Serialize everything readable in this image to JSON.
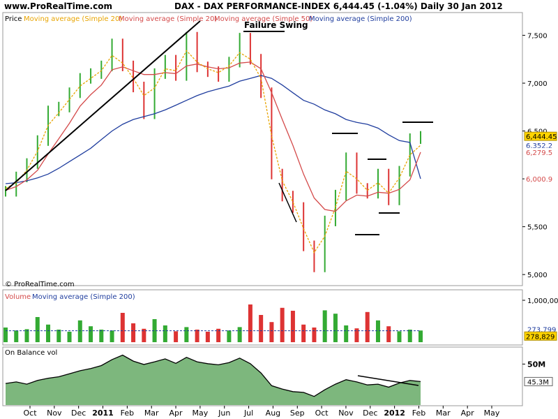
{
  "header": {
    "site": "www.ProRealTime.com",
    "title_line": "DAX - DAX PERFORMANCE-INDEX   6,444.45 (-1.04%)   Daily  30 Jan 2012"
  },
  "colors": {
    "price_up": "#33aa33",
    "price_down": "#dd3333",
    "ma20": "#e8a400",
    "ma50": "#d44a4a",
    "ma200": "#1f3d9e",
    "obv_fill": "#7db77d",
    "last_price_bg": "#ffd400"
  },
  "chart_data": [
    {
      "type": "line",
      "panel": "price",
      "legend": [
        "Price",
        "Moving average (Simple 20)",
        "Moving average (Simple 20)",
        "Moving average (Simple 50)",
        "Moving average (Simple 200)"
      ],
      "watermark": "© ProRealTime.com",
      "annotation": "Failure Swing",
      "ylim": [
        4950,
        7650
      ],
      "y_ticks": [
        "7,500",
        "7,000",
        "6,500",
        "6,000",
        "5,500",
        "5,000"
      ],
      "y_tick_values": [
        7500,
        7000,
        6500,
        6000,
        5500,
        5000
      ],
      "last_values": [
        {
          "label": "6,444.45",
          "value": 6444.45,
          "kind": "price"
        },
        {
          "label": "6,352.2",
          "value": 6352.2,
          "kind": "ma20"
        },
        {
          "label": "6,279.5",
          "value": 6279.5,
          "kind": "ma50"
        },
        {
          "label": "6,000.9",
          "value": 6000.9,
          "kind": "ma200"
        }
      ],
      "x_dates": [
        "2010-09-20",
        "2010-10-04",
        "2010-10-18",
        "2010-11-01",
        "2010-11-15",
        "2010-11-29",
        "2010-12-13",
        "2010-12-27",
        "2011-01-10",
        "2011-01-24",
        "2011-02-07",
        "2011-02-21",
        "2011-03-07",
        "2011-03-14",
        "2011-03-21",
        "2011-04-04",
        "2011-04-18",
        "2011-05-02",
        "2011-05-16",
        "2011-05-30",
        "2011-06-13",
        "2011-06-27",
        "2011-07-07",
        "2011-07-18",
        "2011-08-01",
        "2011-08-08",
        "2011-08-15",
        "2011-08-22",
        "2011-09-05",
        "2011-09-12",
        "2011-09-26",
        "2011-10-10",
        "2011-10-27",
        "2011-11-07",
        "2011-11-24",
        "2011-12-05",
        "2011-12-19",
        "2012-01-02",
        "2012-01-16",
        "2012-01-30"
      ],
      "close": [
        5870,
        6020,
        6160,
        6400,
        6710,
        6750,
        6900,
        7050,
        7100,
        7180,
        7410,
        7180,
        6960,
        6680,
        7100,
        7240,
        7080,
        7480,
        7170,
        7120,
        7070,
        7220,
        7470,
        7250,
        6900,
        6050,
        5820,
        5700,
        5300,
        5080,
        5560,
        5830,
        6220,
        5900,
        5850,
        6050,
        5780,
        6080,
        6420,
        6444
      ],
      "ma20": [
        5900,
        5960,
        6090,
        6290,
        6560,
        6690,
        6830,
        6970,
        7050,
        7130,
        7290,
        7210,
        7050,
        6870,
        6950,
        7150,
        7130,
        7340,
        7220,
        7150,
        7110,
        7180,
        7320,
        7250,
        7050,
        6450,
        5980,
        5760,
        5480,
        5230,
        5400,
        5700,
        6080,
        6000,
        5880,
        5960,
        5850,
        6010,
        6250,
        6352
      ],
      "ma50": [
        5880,
        5920,
        5990,
        6090,
        6260,
        6420,
        6580,
        6760,
        6880,
        6980,
        7140,
        7170,
        7130,
        7090,
        7090,
        7110,
        7100,
        7180,
        7200,
        7170,
        7150,
        7160,
        7210,
        7220,
        7150,
        6900,
        6620,
        6350,
        6050,
        5800,
        5680,
        5660,
        5770,
        5830,
        5820,
        5860,
        5850,
        5890,
        5990,
        6279
      ],
      "ma200": [
        5950,
        5960,
        5980,
        6010,
        6050,
        6110,
        6180,
        6250,
        6320,
        6410,
        6500,
        6570,
        6620,
        6650,
        6680,
        6720,
        6770,
        6820,
        6870,
        6910,
        6940,
        6970,
        7020,
        7050,
        7080,
        7050,
        6980,
        6900,
        6820,
        6780,
        6720,
        6680,
        6620,
        6590,
        6570,
        6530,
        6460,
        6400,
        6380,
        6001
      ]
    },
    {
      "type": "bar",
      "panel": "volume",
      "legend": [
        "Volume",
        "Moving average (Simple 200)"
      ],
      "y_tick": "1,000,000",
      "ylim": [
        0,
        1000000
      ],
      "ma200_value": 273799,
      "ma200_label": "273,799",
      "last_label": "278,829",
      "last_value": 278829,
      "values": [
        350000,
        280000,
        310000,
        600000,
        420000,
        300000,
        250000,
        520000,
        380000,
        300000,
        280000,
        700000,
        450000,
        320000,
        550000,
        400000,
        260000,
        360000,
        300000,
        250000,
        320000,
        280000,
        360000,
        900000,
        650000,
        480000,
        820000,
        750000,
        420000,
        350000,
        760000,
        680000,
        400000,
        330000,
        720000,
        520000,
        380000,
        260000,
        300000,
        278829
      ]
    },
    {
      "type": "area",
      "panel": "obv",
      "legend": [
        "On Balance vol"
      ],
      "y_tick": "50M",
      "last_label": "45.3M",
      "last_value": 45.3,
      "ylim": [
        39,
        54
      ],
      "values": [
        44.8,
        45.2,
        44.6,
        45.6,
        46.2,
        46.6,
        47.4,
        48.2,
        48.8,
        49.6,
        51.2,
        52.4,
        50.8,
        49.9,
        50.6,
        51.4,
        50.2,
        51.8,
        50.6,
        50.1,
        49.8,
        50.4,
        51.6,
        50.1,
        47.6,
        44.2,
        43.3,
        42.6,
        42.4,
        41.3,
        43.1,
        44.6,
        45.8,
        45.2,
        44.4,
        44.6,
        43.8,
        44.9,
        45.6,
        45.3
      ]
    }
  ],
  "xaxis": {
    "labels": [
      "Oct",
      "Nov",
      "Dec",
      "2011",
      "Feb",
      "Mar",
      "Apr",
      "May",
      "Jun",
      "Jul",
      "Aug",
      "Sep",
      "Oct",
      "Nov",
      "Dec",
      "2012",
      "Feb",
      "Mar",
      "Apr",
      "May"
    ],
    "bold": [
      "2011",
      "2012"
    ]
  }
}
